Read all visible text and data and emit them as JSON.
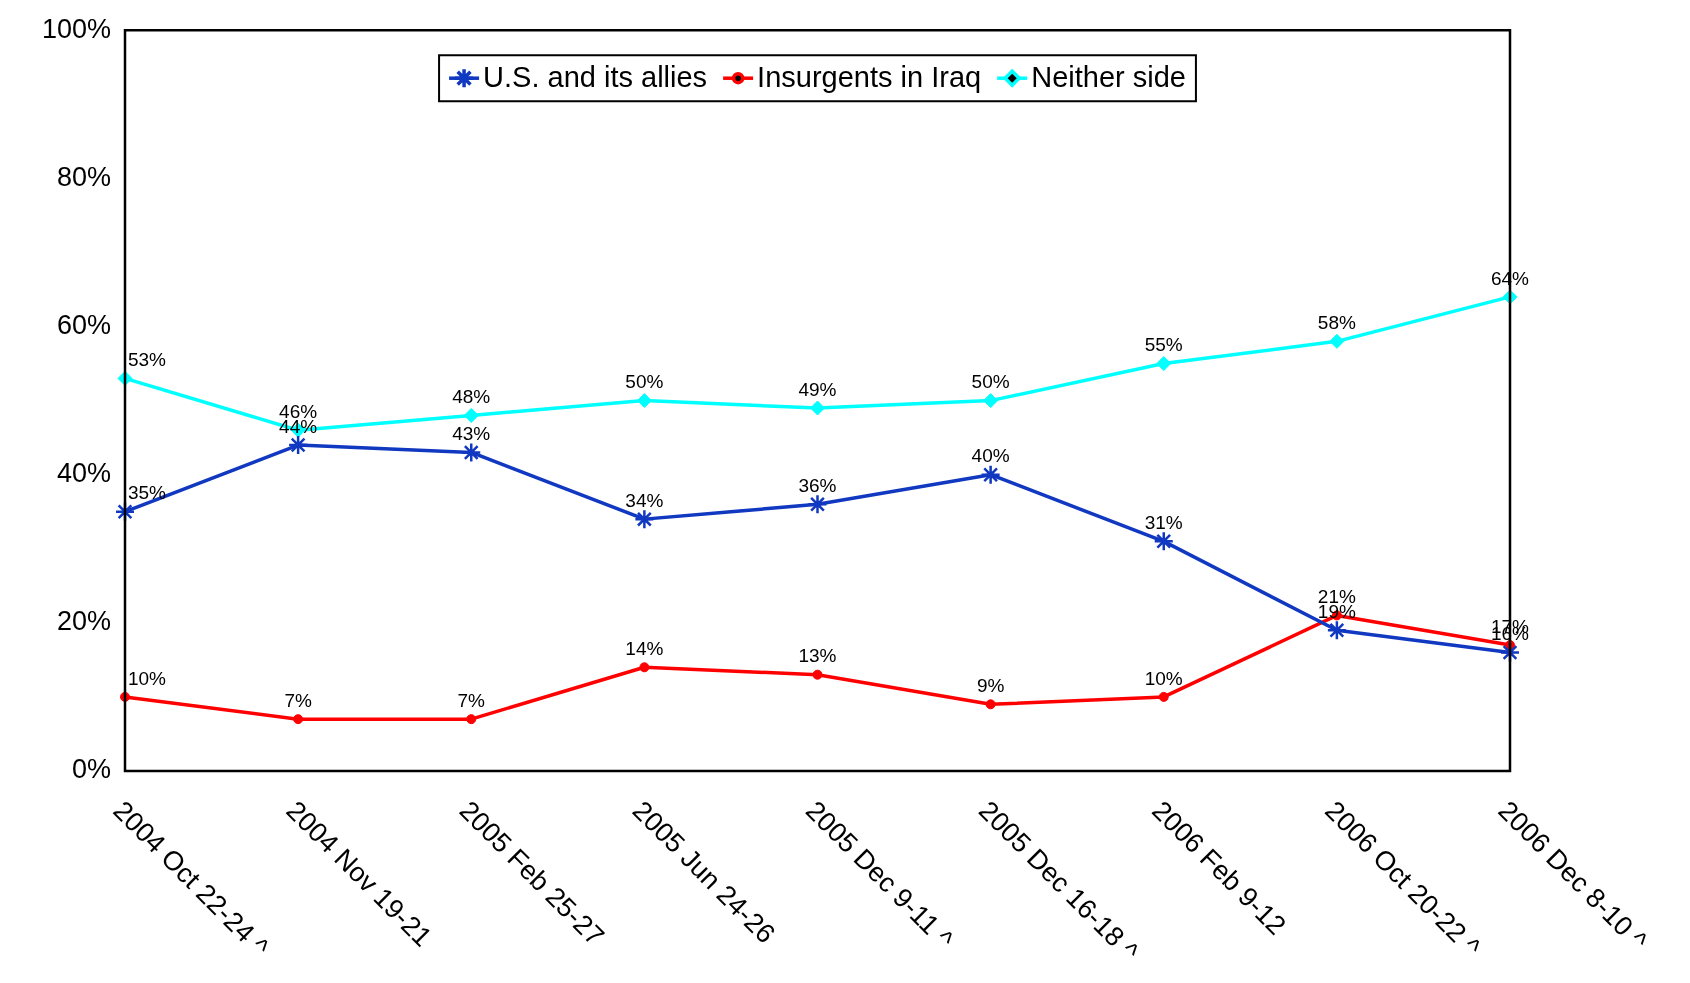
{
  "chart_data": {
    "type": "line",
    "categories": [
      "2004 Oct 22-24 ^",
      "2004 Nov 19-21",
      "2005 Feb 25-27",
      "2005 Jun 24-26",
      "2005 Dec 9-11 ^",
      "2005 Dec 16-18 ^",
      "2006 Feb 9-12",
      "2006 Oct 20-22 ^",
      "2006 Dec 8-10 ^"
    ],
    "series": [
      {
        "name": "U.S. and its allies",
        "color": "#1038c0",
        "marker": "cross",
        "values": [
          35,
          44,
          43,
          34,
          36,
          40,
          31,
          19,
          16
        ],
        "value_labels": [
          "35%",
          "44%",
          "43%",
          "34%",
          "36%",
          "40%",
          "31%",
          "19%",
          "16%"
        ]
      },
      {
        "name": "Insurgents in Iraq",
        "color": "#ff0000",
        "marker": "circle",
        "values": [
          10,
          7,
          7,
          14,
          13,
          9,
          10,
          21,
          17
        ],
        "value_labels": [
          "10%",
          "7%",
          "7%",
          "14%",
          "13%",
          "9%",
          "10%",
          "21%",
          "17%"
        ]
      },
      {
        "name": "Neither side",
        "color": "#00ffff",
        "marker": "diamond",
        "values": [
          53,
          46,
          48,
          50,
          49,
          50,
          55,
          58,
          64
        ],
        "value_labels": [
          "53%",
          "46%",
          "48%",
          "50%",
          "49%",
          "50%",
          "55%",
          "58%",
          "64%"
        ]
      }
    ],
    "ylim": [
      0,
      100
    ],
    "yticks": [
      {
        "value": 0,
        "label": "0%"
      },
      {
        "value": 20,
        "label": "20%"
      },
      {
        "value": 40,
        "label": "40%"
      },
      {
        "value": 60,
        "label": "60%"
      },
      {
        "value": 80,
        "label": "80%"
      },
      {
        "value": 100,
        "label": "100%"
      }
    ],
    "legend": "top",
    "grid": false
  }
}
